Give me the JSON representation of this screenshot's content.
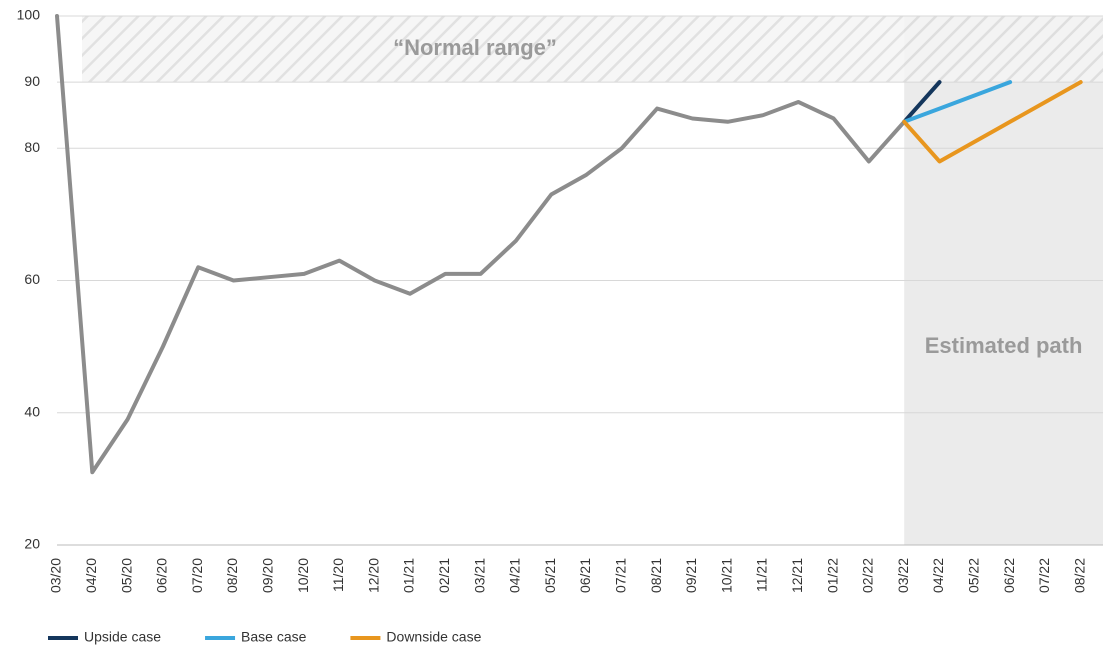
{
  "chart_data": {
    "type": "line",
    "annotations": [
      "“Normal range”",
      "Estimated path"
    ],
    "normal_range": [
      90,
      100
    ],
    "categories": [
      "03/20",
      "04/20",
      "05/20",
      "06/20",
      "07/20",
      "08/20",
      "09/20",
      "10/20",
      "11/20",
      "12/20",
      "01/21",
      "02/21",
      "03/21",
      "04/21",
      "05/21",
      "06/21",
      "07/21",
      "08/21",
      "09/21",
      "10/21",
      "11/21",
      "12/21",
      "01/22",
      "02/22",
      "03/22",
      "04/22",
      "05/22",
      "06/22",
      "07/22",
      "08/22"
    ],
    "series": [
      {
        "color": "#8c8c8c",
        "values": [
          100,
          31,
          39,
          50,
          62,
          60,
          60.5,
          61,
          63,
          60,
          58,
          61,
          61,
          66,
          73,
          76,
          80,
          86,
          84.5,
          84,
          85,
          87,
          84.5,
          78,
          84,
          null,
          null,
          null,
          null,
          null
        ]
      },
      {
        "name": "Upside case",
        "color": "#14365c",
        "values": [
          null,
          null,
          null,
          null,
          null,
          null,
          null,
          null,
          null,
          null,
          null,
          null,
          null,
          null,
          null,
          null,
          null,
          null,
          null,
          null,
          null,
          null,
          null,
          null,
          84,
          90,
          null,
          null,
          null,
          null
        ]
      },
      {
        "name": "Base case",
        "color": "#3aa6dd",
        "values": [
          null,
          null,
          null,
          null,
          null,
          null,
          null,
          null,
          null,
          null,
          null,
          null,
          null,
          null,
          null,
          null,
          null,
          null,
          null,
          null,
          null,
          null,
          null,
          null,
          84,
          86,
          88,
          90,
          null,
          null
        ]
      },
      {
        "name": "Downside case",
        "color": "#e8961e",
        "values": [
          null,
          null,
          null,
          null,
          null,
          null,
          null,
          null,
          null,
          null,
          null,
          null,
          null,
          null,
          null,
          null,
          null,
          null,
          null,
          null,
          null,
          null,
          null,
          null,
          84,
          78,
          81,
          84,
          87,
          90
        ]
      }
    ],
    "ylim": [
      20,
      100
    ],
    "yticks": [
      20,
      40,
      60,
      80,
      90,
      100
    ],
    "grid": true
  }
}
